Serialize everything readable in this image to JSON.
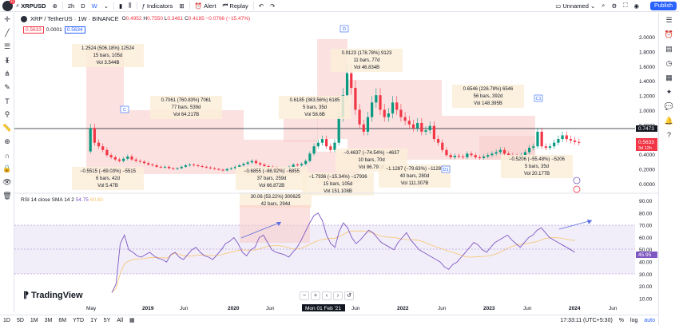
{
  "topbar": {
    "symbol": "XRPUSD",
    "interval_2h": "2h",
    "interval_d": "D",
    "interval_w": "W",
    "indicators": "Indicators",
    "alert": "Alert",
    "replay": "Replay",
    "layout": "Unnamed",
    "publish": "Publish",
    "badge": "11"
  },
  "legend": {
    "title": "XRP / TetherUS · 1W · BINANCE",
    "o_label": "O",
    "o": "0.4952",
    "h_label": "H",
    "h": "0.7550",
    "l_label": "L",
    "l": "0.3461",
    "c_label": "C",
    "c": "0.4185",
    "chg": "−0.0766 (−15.47%)",
    "price1": "0.5633",
    "price_mid": "0.0001",
    "price2": "0.5634"
  },
  "rsi_legend": {
    "label": "RSI 14 close SMA 14 2",
    "v1": "54.75",
    "v2": "60.60"
  },
  "price_axis": [
    "2.0000",
    "1.8000",
    "1.6000",
    "1.4000",
    "1.2000",
    "1.0000",
    "0.8000",
    "0.6000",
    "0.4000",
    "0.2000",
    "0.0000"
  ],
  "price_tags": {
    "last": "0.7473",
    "current": "0.5633",
    "countdown": "3d 12h"
  },
  "rsi_axis": [
    "90.00",
    "80.00",
    "70.00",
    "60.00",
    "50.00",
    "40.00",
    "30.00",
    "20.00",
    "10.00"
  ],
  "rsi_tag": "45.95",
  "time_axis": [
    "May",
    "2019",
    "Jun",
    "2020",
    "Jun",
    "Jun",
    "2022",
    "Jun",
    "2023",
    "Jun",
    "2024",
    "Jun"
  ],
  "time_cursor": "Mon 01 Feb '21",
  "annotations": [
    {
      "l1": "1.2524 (506.18%) 12524",
      "l2": "15 bars, 105d",
      "l3": "Vol 3.544B"
    },
    {
      "l1": "0.7061 (760.83%) 7061",
      "l2": "77 bars, 539d",
      "l3": "Vol 64.217B"
    },
    {
      "l1": "0.6185 (363.56%) 6185",
      "l2": "5 bars, 35d",
      "l3": "Vol 58.6B"
    },
    {
      "l1": "0.9123 (178.78%) 9123",
      "l2": "11 bars, 77d",
      "l3": "Vol 46.834B"
    },
    {
      "l1": "0.6546 (226.78%) 6546",
      "l2": "56 bars, 392d",
      "l3": "Vol 148.395B"
    },
    {
      "l1": "−0.5515 (−69.03%) −5515",
      "l2": "6 bars, 42d",
      "l3": "Vol 5.47B"
    },
    {
      "l1": "−0.6855 (−86.92%) −6855",
      "l2": "37 bars, 259d",
      "l3": "Vol 66.872B"
    },
    {
      "l1": "−0.4637 (−74.54%) −4637",
      "l2": "10 bars, 70d",
      "l3": "Vol 86.791B"
    },
    {
      "l1": "−1.1287 (−79.63%) −11287",
      "l2": "40 bars, 280d",
      "l3": "Vol 111.307B"
    },
    {
      "l1": "−0.5206 (−55.48%) −5206",
      "l2": "5 bars, 35d",
      "l3": "Vol 20.177B"
    },
    {
      "l1": "30.06 (53.22%) 300625",
      "l2": "42 bars, 294d",
      "l3": ""
    },
    {
      "l1": "−1.7936 (−15.34%) −17936",
      "l2": "15 bars, 105d",
      "l3": "Vol 151.108B"
    }
  ],
  "markers": {
    "c": "C",
    "d": "D",
    "c1": "C1",
    "d1": "D1"
  },
  "brand": "TradingView",
  "bottom": {
    "ranges": [
      "1D",
      "5D",
      "1M",
      "3M",
      "6M",
      "YTD",
      "1Y",
      "5Y",
      "All"
    ],
    "clock": "17:33:11 (UTC+5:30)",
    "log": "log",
    "auto": "auto"
  },
  "colors": {
    "accent": "#2962ff",
    "down": "#f23645",
    "rsi": "#7e57c2",
    "box": "#f7cac9"
  }
}
